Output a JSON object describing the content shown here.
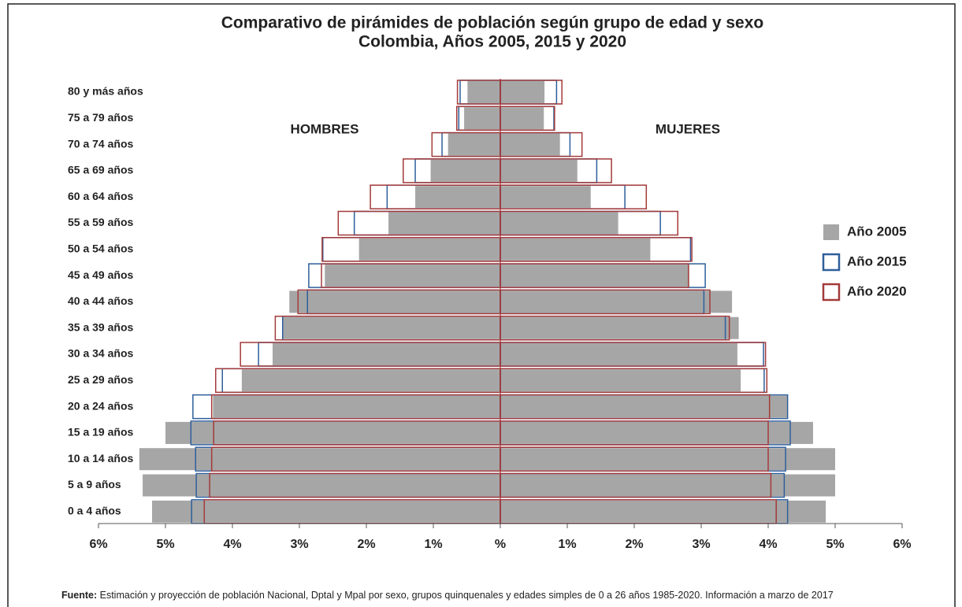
{
  "chart_data": {
    "type": "pyramid",
    "title": [
      "Comparativo de pirámides de población según grupo de edad y sexo",
      "Colombia, Años 2005, 2015 y 2020"
    ],
    "left_label": "HOMBRES",
    "right_label": "MUJERES",
    "categories": [
      "80 y más años",
      "75 a 79 años",
      "70 a 74 años",
      "65 a 69 años",
      "60 a 64 años",
      "55 a 59 años",
      "50 a 54 años",
      "45 a 49 años",
      "40 a 44 años",
      "35 a 39 años",
      "30 a 34 años",
      "25 a 29 años",
      "20 a 24 años",
      "15 a 19 años",
      "10 a 14 años",
      "5 a 9 años",
      "0 a 4 años"
    ],
    "series": [
      {
        "name": "Año 2005",
        "color": "#a6a6a6",
        "style": "fill",
        "left_values": [
          0.49,
          0.54,
          0.78,
          1.04,
          1.27,
          1.67,
          2.11,
          2.62,
          3.15,
          3.25,
          3.4,
          3.86,
          4.29,
          5.0,
          5.39,
          5.34,
          5.2
        ],
        "right_values": [
          0.66,
          0.65,
          0.89,
          1.15,
          1.35,
          1.76,
          2.24,
          2.82,
          3.46,
          3.56,
          3.54,
          3.59,
          4.29,
          4.67,
          5.0,
          5.0,
          4.86
        ]
      },
      {
        "name": "Año 2015",
        "color": "#2e5f9a",
        "style": "outline",
        "left_values": [
          0.6,
          0.62,
          0.87,
          1.27,
          1.69,
          2.18,
          2.65,
          2.86,
          2.88,
          3.25,
          3.61,
          4.15,
          4.59,
          4.62,
          4.55,
          4.54,
          4.61
        ],
        "right_values": [
          0.84,
          0.8,
          1.04,
          1.44,
          1.86,
          2.39,
          2.84,
          3.06,
          3.04,
          3.36,
          3.93,
          3.94,
          4.29,
          4.33,
          4.26,
          4.24,
          4.29
        ]
      },
      {
        "name": "Año 2020",
        "color": "#a33a3a",
        "style": "outline",
        "left_values": [
          0.64,
          0.65,
          1.02,
          1.45,
          1.94,
          2.42,
          2.66,
          2.67,
          3.02,
          3.36,
          3.88,
          4.25,
          4.31,
          4.28,
          4.31,
          4.34,
          4.42
        ],
        "right_values": [
          0.92,
          0.81,
          1.22,
          1.66,
          2.18,
          2.65,
          2.86,
          2.81,
          3.13,
          3.42,
          3.96,
          3.98,
          4.02,
          4.0,
          4.0,
          4.04,
          4.12
        ]
      }
    ],
    "xlim": [
      -6,
      6
    ],
    "xticks": [
      {
        "value": -6,
        "label": "6%"
      },
      {
        "value": -5,
        "label": "5%"
      },
      {
        "value": -4,
        "label": "4%"
      },
      {
        "value": -3,
        "label": "3%"
      },
      {
        "value": -2,
        "label": "2%"
      },
      {
        "value": -1,
        "label": "1%"
      },
      {
        "value": 0,
        "label": "%"
      },
      {
        "value": 1,
        "label": "1%"
      },
      {
        "value": 2,
        "label": "2%"
      },
      {
        "value": 3,
        "label": "3%"
      },
      {
        "value": 4,
        "label": "4%"
      },
      {
        "value": 5,
        "label": "5%"
      },
      {
        "value": 6,
        "label": "6%"
      }
    ],
    "legend": "right",
    "source_label": "Fuente:",
    "source": "Estimación y proyección de población Nacional, Dptal y Mpal por sexo, grupos quinquenales y edades simples de 0 a 26 años 1985-2020. Información a marzo de 2017"
  }
}
